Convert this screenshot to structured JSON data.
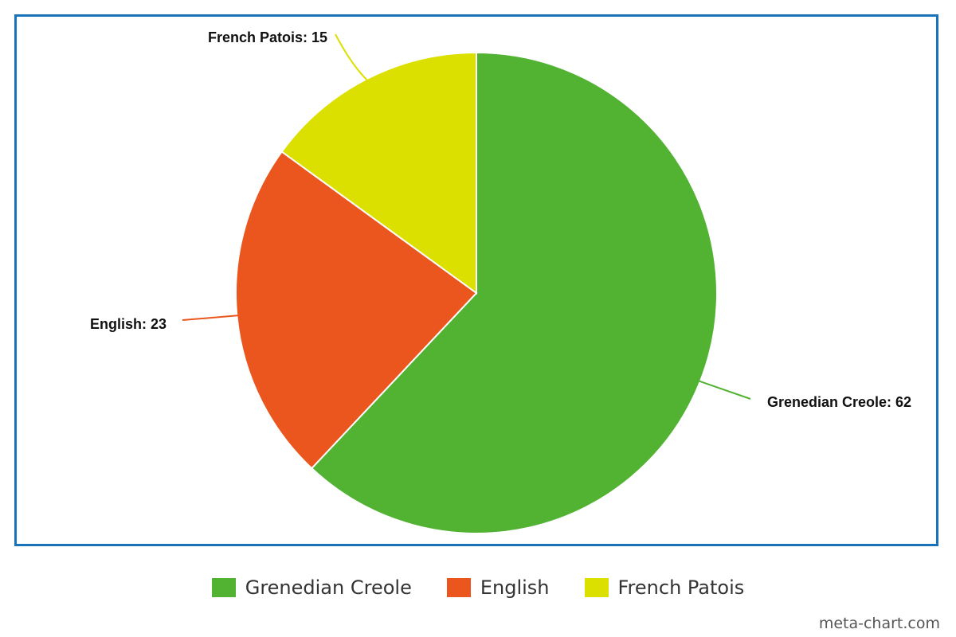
{
  "chart_data": {
    "type": "pie",
    "categories": [
      "Grenedian Creole",
      "English",
      "French Patois"
    ],
    "values": [
      62,
      23,
      15
    ],
    "data_labels": [
      "Grenedian Creole: 62",
      "English: 23",
      "French Patois: 15"
    ],
    "colors": [
      "#52b333",
      "#ea561e",
      "#dbe000"
    ],
    "start_angle_deg": 0,
    "direction": "clockwise",
    "legend": "bottom",
    "border_color": "#1a73b8"
  },
  "legend": {
    "items": [
      {
        "label": "Grenedian Creole",
        "color": "#52b333"
      },
      {
        "label": "English",
        "color": "#ea561e"
      },
      {
        "label": "French Patois",
        "color": "#dbe000"
      }
    ]
  },
  "watermark": "meta-chart.com"
}
